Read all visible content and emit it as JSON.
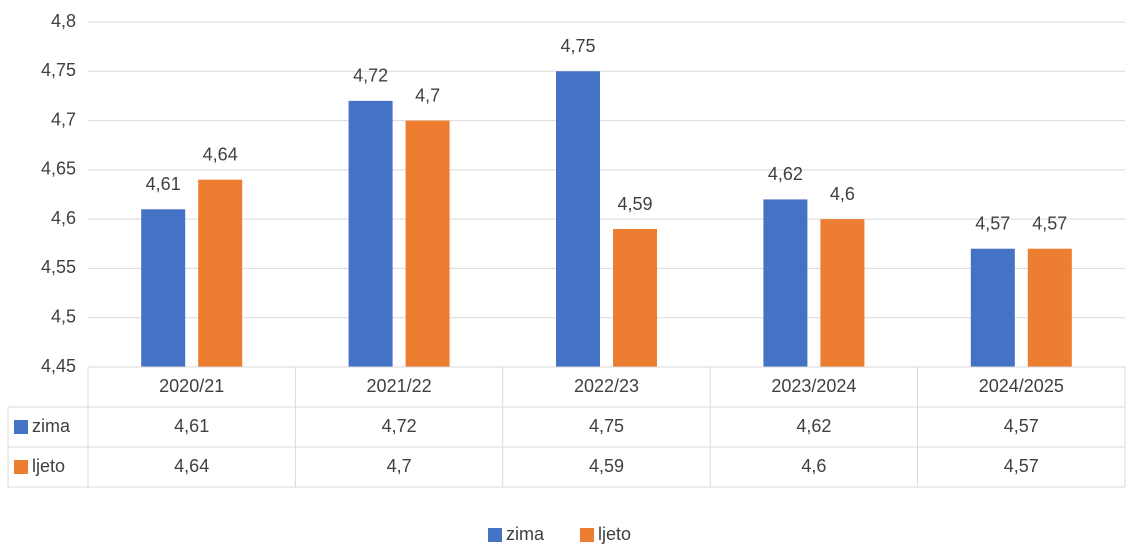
{
  "chart_data": {
    "type": "bar",
    "categories": [
      "2020/21",
      "2021/22",
      "2022/23",
      "2023/2024",
      "2024/2025"
    ],
    "series": [
      {
        "name": "zima",
        "color": "#4472c4",
        "values": [
          4.61,
          4.72,
          4.75,
          4.62,
          4.57
        ],
        "value_labels": [
          "4,61",
          "4,72",
          "4,75",
          "4,62",
          "4,57"
        ]
      },
      {
        "name": "ljeto",
        "color": "#ed7d31",
        "values": [
          4.64,
          4.7,
          4.59,
          4.6,
          4.57
        ],
        "value_labels": [
          "4,64",
          "4,7",
          "4,59",
          "4,6",
          "4,57"
        ]
      }
    ],
    "ylim": [
      4.45,
      4.8
    ],
    "yticks": [
      {
        "value": 4.45,
        "label": "4,45"
      },
      {
        "value": 4.5,
        "label": "4,5"
      },
      {
        "value": 4.55,
        "label": "4,55"
      },
      {
        "value": 4.6,
        "label": "4,6"
      },
      {
        "value": 4.65,
        "label": "4,65"
      },
      {
        "value": 4.7,
        "label": "4,7"
      },
      {
        "value": 4.75,
        "label": "4,75"
      },
      {
        "value": 4.8,
        "label": "4,8"
      }
    ],
    "grid": true,
    "data_table": true,
    "legend": "bottom"
  }
}
